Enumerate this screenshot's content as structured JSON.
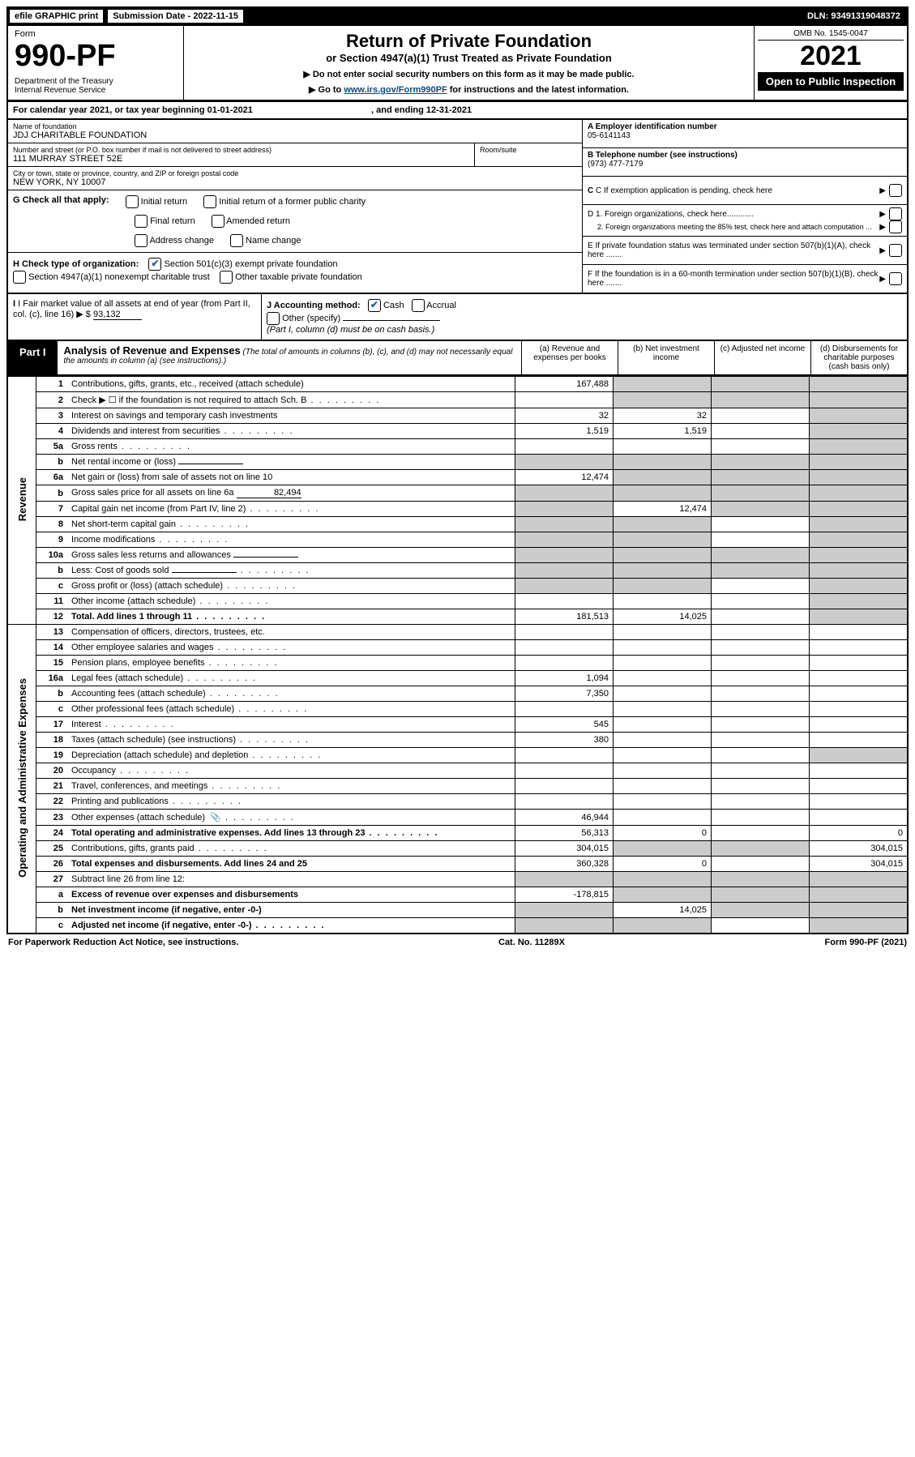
{
  "top": {
    "efile": "efile GRAPHIC print",
    "submission": "Submission Date - 2022-11-15",
    "dln": "DLN: 93491319048372"
  },
  "header": {
    "form_word": "Form",
    "form_no": "990-PF",
    "dept": "Department of the Treasury\nInternal Revenue Service",
    "title": "Return of Private Foundation",
    "subtitle": "or Section 4947(a)(1) Trust Treated as Private Foundation",
    "note1": "▶ Do not enter social security numbers on this form as it may be made public.",
    "note2_pre": "▶ Go to ",
    "note2_link": "www.irs.gov/Form990PF",
    "note2_post": " for instructions and the latest information.",
    "omb": "OMB No. 1545-0047",
    "year": "2021",
    "open": "Open to Public Inspection"
  },
  "cal": {
    "text": "For calendar year 2021, or tax year beginning 01-01-2021",
    "ending": ", and ending 12-31-2021"
  },
  "info": {
    "name_label": "Name of foundation",
    "name": "JDJ CHARITABLE FOUNDATION",
    "addr_label": "Number and street (or P.O. box number if mail is not delivered to street address)",
    "addr": "111 MURRAY STREET 52E",
    "room_label": "Room/suite",
    "city_label": "City or town, state or province, country, and ZIP or foreign postal code",
    "city": "NEW YORK, NY  10007",
    "a_label": "A Employer identification number",
    "a_val": "05-6141143",
    "b_label": "B Telephone number (see instructions)",
    "b_val": "(973) 477-7179",
    "c_label": "C If exemption application is pending, check here",
    "d1": "D 1. Foreign organizations, check here............",
    "d2": "2. Foreign organizations meeting the 85% test, check here and attach computation ...",
    "e_label": "E  If private foundation status was terminated under section 507(b)(1)(A), check here .......",
    "f_label": "F  If the foundation is in a 60-month termination under section 507(b)(1)(B), check here .......",
    "g_label": "G Check all that apply:",
    "g_items": [
      "Initial return",
      "Initial return of a former public charity",
      "Final return",
      "Amended return",
      "Address change",
      "Name change"
    ],
    "h_label": "H Check type of organization:",
    "h1": "Section 501(c)(3) exempt private foundation",
    "h2": "Section 4947(a)(1) nonexempt charitable trust",
    "h3": "Other taxable private foundation",
    "i_label": "I Fair market value of all assets at end of year (from Part II, col. (c), line 16)",
    "i_val": "93,132",
    "j_label": "J Accounting method:",
    "j_cash": "Cash",
    "j_accrual": "Accrual",
    "j_other": "Other (specify)",
    "j_note": "(Part I, column (d) must be on cash basis.)"
  },
  "part1": {
    "label": "Part I",
    "title": "Analysis of Revenue and Expenses",
    "desc": "(The total of amounts in columns (b), (c), and (d) may not necessarily equal the amounts in column (a) (see instructions).)",
    "col_a": "(a)  Revenue and expenses per books",
    "col_b": "(b)  Net investment income",
    "col_c": "(c)  Adjusted net income",
    "col_d": "(d)  Disbursements for charitable purposes (cash basis only)"
  },
  "sections": {
    "revenue": "Revenue",
    "expenses": "Operating and Administrative Expenses"
  },
  "rows": [
    {
      "n": "1",
      "d": "Contributions, gifts, grants, etc., received (attach schedule)",
      "a": "167,488",
      "bs": true,
      "cs": true,
      "ds": true
    },
    {
      "n": "2",
      "d": "Check ▶ ☐ if the foundation is not required to attach Sch. B",
      "dots": true,
      "bs": true,
      "cs": true,
      "ds": true
    },
    {
      "n": "3",
      "d": "Interest on savings and temporary cash investments",
      "a": "32",
      "b": "32",
      "ds": true
    },
    {
      "n": "4",
      "d": "Dividends and interest from securities",
      "dots": true,
      "a": "1,519",
      "b": "1,519",
      "ds": true
    },
    {
      "n": "5a",
      "d": "Gross rents",
      "dots": true,
      "ds": true
    },
    {
      "n": "b",
      "d": "Net rental income or (loss)",
      "inline": true,
      "as": true,
      "bs": true,
      "cs": true,
      "ds": true
    },
    {
      "n": "6a",
      "d": "Net gain or (loss) from sale of assets not on line 10",
      "a": "12,474",
      "bs": true,
      "cs": true,
      "ds": true
    },
    {
      "n": "b",
      "d": "Gross sales price for all assets on line 6a",
      "inline": true,
      "inlineval": "82,494",
      "as": true,
      "bs": true,
      "cs": true,
      "ds": true
    },
    {
      "n": "7",
      "d": "Capital gain net income (from Part IV, line 2)",
      "dots": true,
      "as": true,
      "b": "12,474",
      "cs": true,
      "ds": true
    },
    {
      "n": "8",
      "d": "Net short-term capital gain",
      "dots": true,
      "as": true,
      "bs": true,
      "ds": true
    },
    {
      "n": "9",
      "d": "Income modifications",
      "dots": true,
      "as": true,
      "bs": true,
      "ds": true
    },
    {
      "n": "10a",
      "d": "Gross sales less returns and allowances",
      "inline": true,
      "as": true,
      "bs": true,
      "cs": true,
      "ds": true
    },
    {
      "n": "b",
      "d": "Less: Cost of goods sold",
      "dots": true,
      "inline": true,
      "as": true,
      "bs": true,
      "cs": true,
      "ds": true
    },
    {
      "n": "c",
      "d": "Gross profit or (loss) (attach schedule)",
      "dots": true,
      "as": true,
      "bs": true,
      "ds": true
    },
    {
      "n": "11",
      "d": "Other income (attach schedule)",
      "dots": true,
      "ds": true
    },
    {
      "n": "12",
      "d": "Total. Add lines 1 through 11",
      "dots": true,
      "bold": true,
      "a": "181,513",
      "b": "14,025",
      "ds": true
    }
  ],
  "rows2": [
    {
      "n": "13",
      "d": "Compensation of officers, directors, trustees, etc."
    },
    {
      "n": "14",
      "d": "Other employee salaries and wages",
      "dots": true
    },
    {
      "n": "15",
      "d": "Pension plans, employee benefits",
      "dots": true
    },
    {
      "n": "16a",
      "d": "Legal fees (attach schedule)",
      "dots": true,
      "a": "1,094"
    },
    {
      "n": "b",
      "d": "Accounting fees (attach schedule)",
      "dots": true,
      "a": "7,350"
    },
    {
      "n": "c",
      "d": "Other professional fees (attach schedule)",
      "dots": true
    },
    {
      "n": "17",
      "d": "Interest",
      "dots": true,
      "a": "545"
    },
    {
      "n": "18",
      "d": "Taxes (attach schedule) (see instructions)",
      "dots": true,
      "a": "380"
    },
    {
      "n": "19",
      "d": "Depreciation (attach schedule) and depletion",
      "dots": true,
      "ds": true
    },
    {
      "n": "20",
      "d": "Occupancy",
      "dots": true
    },
    {
      "n": "21",
      "d": "Travel, conferences, and meetings",
      "dots": true
    },
    {
      "n": "22",
      "d": "Printing and publications",
      "dots": true
    },
    {
      "n": "23",
      "d": "Other expenses (attach schedule)",
      "dots": true,
      "icon": true,
      "a": "46,944"
    },
    {
      "n": "24",
      "d": "Total operating and administrative expenses. Add lines 13 through 23",
      "dots": true,
      "bold": true,
      "a": "56,313",
      "b": "0",
      "d4": "0"
    },
    {
      "n": "25",
      "d": "Contributions, gifts, grants paid",
      "dots": true,
      "a": "304,015",
      "bs": true,
      "cs": true,
      "d4": "304,015"
    },
    {
      "n": "26",
      "d": "Total expenses and disbursements. Add lines 24 and 25",
      "bold": true,
      "a": "360,328",
      "b": "0",
      "d4": "304,015"
    },
    {
      "n": "27",
      "d": "Subtract line 26 from line 12:",
      "as": true,
      "bs": true,
      "cs": true,
      "ds": true
    },
    {
      "n": "a",
      "d": "Excess of revenue over expenses and disbursements",
      "bold": true,
      "a": "-178,815",
      "bs": true,
      "cs": true,
      "ds": true
    },
    {
      "n": "b",
      "d": "Net investment income (if negative, enter -0-)",
      "bold": true,
      "as": true,
      "b": "14,025",
      "cs": true,
      "ds": true
    },
    {
      "n": "c",
      "d": "Adjusted net income (if negative, enter -0-)",
      "bold": true,
      "dots": true,
      "as": true,
      "bs": true,
      "ds": true
    }
  ],
  "footer": {
    "left": "For Paperwork Reduction Act Notice, see instructions.",
    "center": "Cat. No. 11289X",
    "right": "Form 990-PF (2021)"
  }
}
